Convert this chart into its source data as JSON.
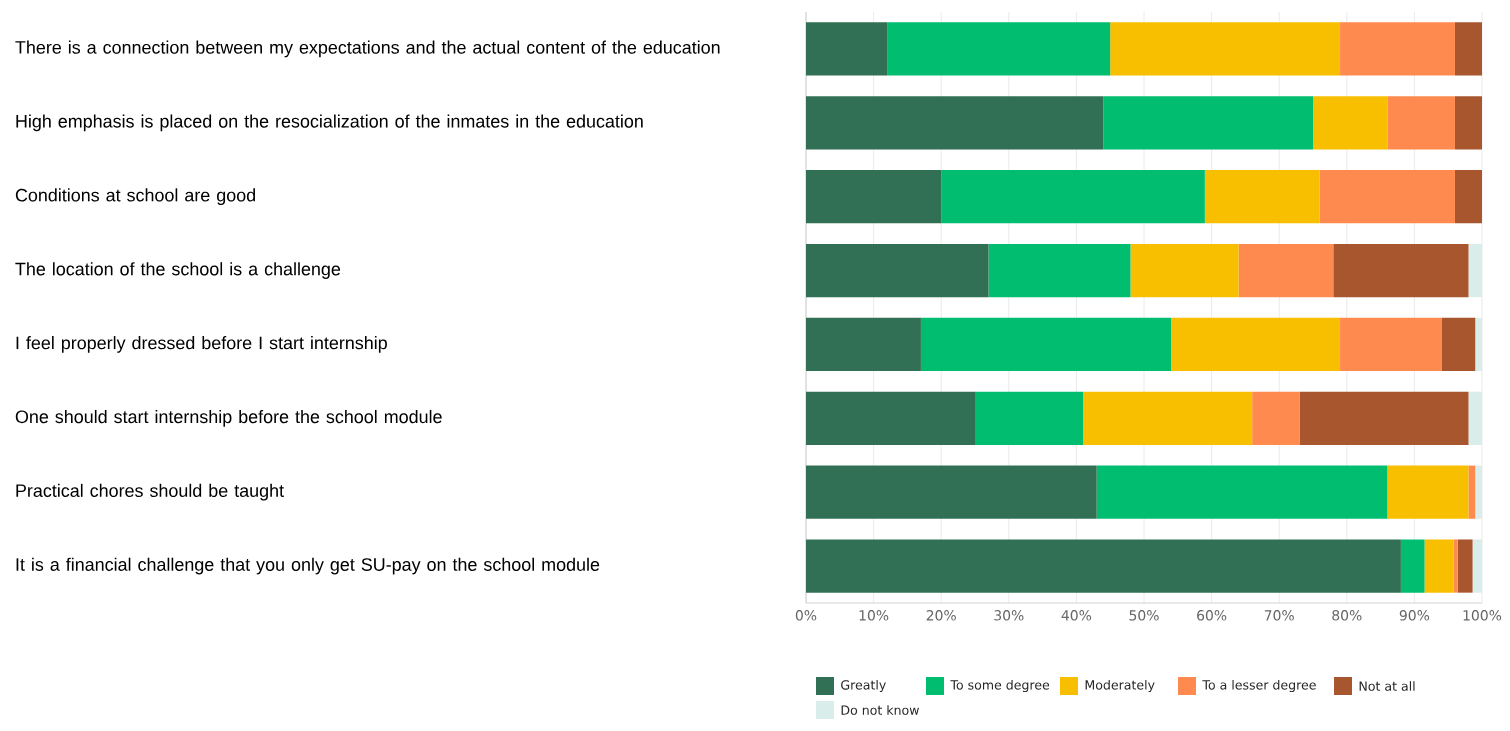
{
  "chart_data": {
    "type": "bar",
    "orientation": "horizontal",
    "stacked": true,
    "categories": [
      "There is a connection between my expectations and the actual content of the education",
      "High emphasis is placed on the resocialization of the inmates in the education",
      "Conditions at school are good",
      "The location of the school is a challenge",
      "I feel properly dressed before I start internship",
      "One should start internship before the school module",
      "Practical chores should be taught",
      "It is a financial challenge that you only get SU-pay on the school module"
    ],
    "series": [
      {
        "name": "Greatly",
        "color": "#327055",
        "values": [
          12,
          44,
          20,
          27,
          17,
          25,
          43,
          88
        ]
      },
      {
        "name": "To some degree",
        "color": "#00bd70",
        "values": [
          33,
          31,
          39,
          21,
          37,
          16,
          43,
          3.5
        ]
      },
      {
        "name": "Moderately",
        "color": "#f8bf00",
        "values": [
          34,
          11,
          17,
          16,
          25,
          25,
          12,
          4.3
        ]
      },
      {
        "name": "To a lesser degree",
        "color": "#ff8a4f",
        "values": [
          17,
          10,
          20,
          14,
          15,
          7,
          1,
          0.6
        ]
      },
      {
        "name": "Not at all",
        "color": "#a8562e",
        "values": [
          4,
          4,
          4,
          20,
          5,
          25,
          0,
          2.2
        ]
      },
      {
        "name": "Do not know",
        "color": "#d9eeea",
        "values": [
          0,
          0,
          0,
          2,
          1,
          2,
          1,
          1.4
        ]
      }
    ],
    "xlim": [
      0,
      100
    ],
    "xticks": [
      {
        "value": 0,
        "label": "0%"
      },
      {
        "value": 10,
        "label": "10%"
      },
      {
        "value": 20,
        "label": "20%"
      },
      {
        "value": 30,
        "label": "30%"
      },
      {
        "value": 40,
        "label": "40%"
      },
      {
        "value": 50,
        "label": "50%"
      },
      {
        "value": 60,
        "label": "60%"
      },
      {
        "value": 70,
        "label": "70%"
      },
      {
        "value": 80,
        "label": "80%"
      },
      {
        "value": 90,
        "label": "90%"
      },
      {
        "value": 100,
        "label": "100%"
      }
    ],
    "grid": "x",
    "legend": "bottom"
  }
}
